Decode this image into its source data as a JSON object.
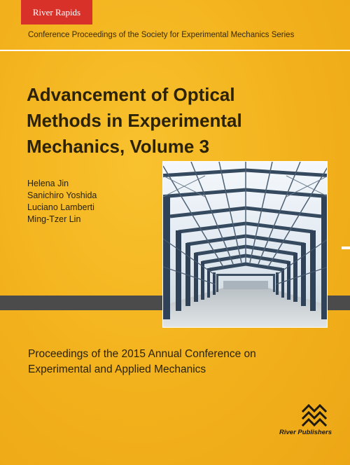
{
  "badge": "River Rapids",
  "series": "Conference Proceedings of the Society for Experimental Mechanics Series",
  "title_lines": [
    "Advancement of Optical",
    "Methods in Experimental",
    "Mechanics, Volume 3"
  ],
  "authors": [
    "Helena Jin",
    "Sanichiro Yoshida",
    "Luciano Lamberti",
    "Ming-Tzer Lin"
  ],
  "subtitle_lines": [
    "Proceedings of the 2015 Annual Conference on",
    "Experimental and Applied Mechanics"
  ],
  "publisher": "River Publishers",
  "colors": {
    "background": "#f3b31f",
    "badge": "#d7312a",
    "band": "#4b4b4b",
    "steel": "#35495f"
  },
  "icons": {
    "photo": "steel-frame-building-photo",
    "logo": "river-waves-logo-icon"
  }
}
